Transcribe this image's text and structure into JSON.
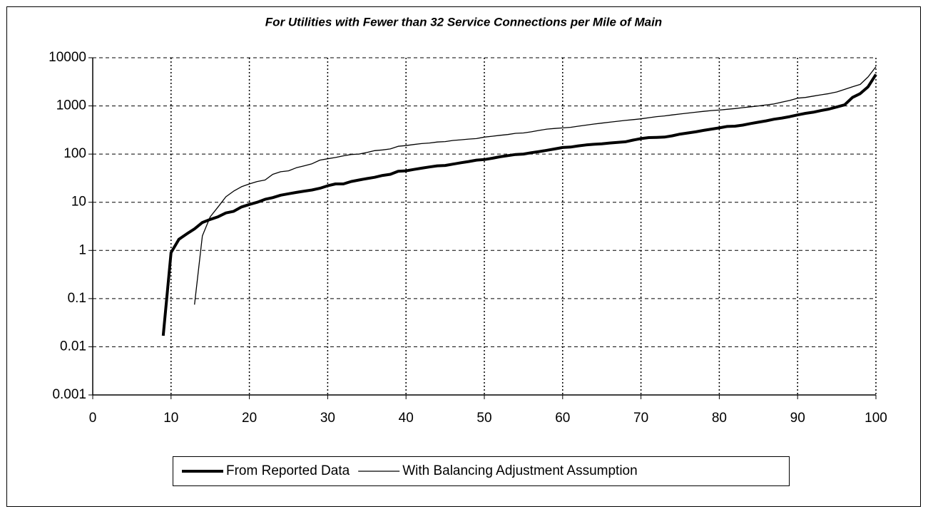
{
  "chart_data": {
    "type": "line",
    "title": "For Utilities with Fewer than 32 Service Connections per Mile of Main",
    "log_y": true,
    "grid": true,
    "legend": "bottom",
    "xlim": [
      0,
      100
    ],
    "xticks": [
      0,
      10,
      20,
      30,
      40,
      50,
      60,
      70,
      80,
      90,
      100
    ],
    "ylim": [
      0.001,
      10000
    ],
    "yticks": [
      10000,
      1000,
      100,
      10,
      1,
      0.1,
      0.01,
      0.001
    ],
    "x": [
      9,
      10,
      11,
      12,
      13,
      14,
      15,
      16,
      17,
      18,
      19,
      20,
      21,
      22,
      23,
      24,
      25,
      26,
      27,
      28,
      29,
      30,
      31,
      32,
      33,
      34,
      35,
      36,
      37,
      38,
      39,
      40,
      41,
      42,
      43,
      44,
      45,
      46,
      47,
      48,
      49,
      50,
      51,
      52,
      53,
      54,
      55,
      56,
      57,
      58,
      59,
      60,
      61,
      62,
      63,
      64,
      65,
      66,
      67,
      68,
      69,
      70,
      71,
      72,
      73,
      74,
      75,
      76,
      77,
      78,
      79,
      80,
      81,
      82,
      83,
      84,
      85,
      86,
      87,
      88,
      89,
      90,
      91,
      92,
      93,
      94,
      95,
      96,
      97,
      98,
      99,
      100
    ],
    "series": [
      {
        "name": "From Reported Data",
        "color": "#000000",
        "width": 4,
        "values": [
          0.017,
          0.9,
          1.7,
          2.2,
          2.8,
          3.8,
          4.4,
          5,
          6,
          6.5,
          8,
          9,
          10,
          11.5,
          12.5,
          14,
          15,
          16,
          17,
          18,
          19.5,
          22,
          24,
          24,
          27,
          29,
          31,
          33,
          36,
          38,
          44,
          45,
          48,
          51,
          54,
          57,
          58,
          62,
          66,
          70,
          75,
          77,
          82,
          88,
          93,
          98,
          100,
          107,
          113,
          120,
          128,
          137,
          140,
          148,
          155,
          160,
          163,
          170,
          175,
          180,
          195,
          210,
          220,
          222,
          225,
          240,
          260,
          275,
          290,
          310,
          330,
          350,
          375,
          380,
          400,
          430,
          460,
          490,
          530,
          560,
          600,
          650,
          700,
          740,
          800,
          860,
          950,
          1050,
          1500,
          1800,
          2500,
          4500
        ]
      },
      {
        "name": "With Balancing Adjustment Assumption",
        "color": "#000000",
        "width": 1.3,
        "values": [
          null,
          null,
          null,
          null,
          0.075,
          2,
          5,
          8,
          13,
          17,
          21,
          24,
          27,
          29,
          38,
          43,
          45,
          52,
          57,
          63,
          75,
          80,
          85,
          92,
          98,
          100,
          108,
          118,
          122,
          128,
          145,
          150,
          158,
          165,
          170,
          178,
          182,
          192,
          198,
          205,
          210,
          225,
          235,
          245,
          255,
          270,
          275,
          290,
          310,
          330,
          340,
          350,
          360,
          380,
          400,
          420,
          440,
          460,
          480,
          500,
          520,
          540,
          570,
          600,
          620,
          650,
          680,
          710,
          740,
          770,
          800,
          820,
          850,
          880,
          920,
          960,
          1000,
          1050,
          1100,
          1200,
          1300,
          1450,
          1500,
          1600,
          1700,
          1800,
          1950,
          2200,
          2500,
          2800,
          4000,
          6500
        ]
      }
    ]
  }
}
